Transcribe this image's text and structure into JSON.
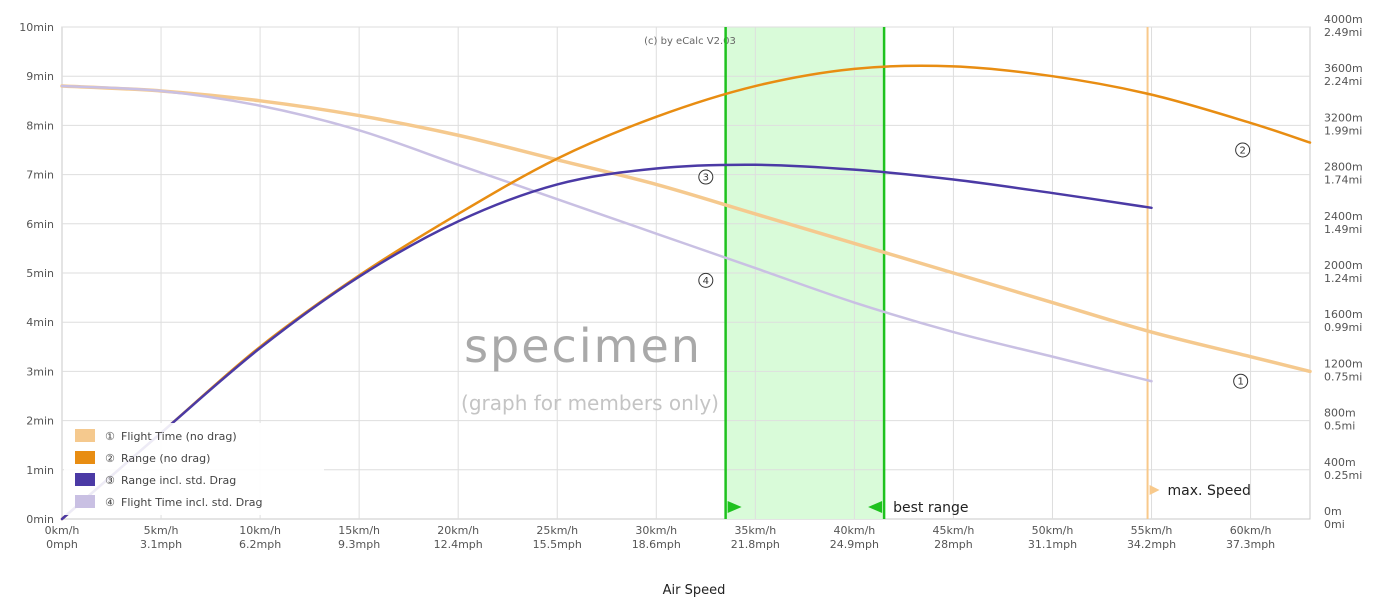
{
  "chart_data": {
    "type": "line",
    "xlabel": "Air Speed",
    "copyright": "(c) by eCalc  V2.03",
    "watermark": "specimen",
    "watermark_sub": "(graph for members only)",
    "x_range": [
      0,
      63
    ],
    "y_left_range": [
      0,
      10
    ],
    "y_right_range": [
      0,
      4000
    ],
    "x_ticks": [
      {
        "v": 0,
        "kmh": "0km/h",
        "mph": "0mph"
      },
      {
        "v": 5,
        "kmh": "5km/h",
        "mph": "3.1mph"
      },
      {
        "v": 10,
        "kmh": "10km/h",
        "mph": "6.2mph"
      },
      {
        "v": 15,
        "kmh": "15km/h",
        "mph": "9.3mph"
      },
      {
        "v": 20,
        "kmh": "20km/h",
        "mph": "12.4mph"
      },
      {
        "v": 25,
        "kmh": "25km/h",
        "mph": "15.5mph"
      },
      {
        "v": 30,
        "kmh": "30km/h",
        "mph": "18.6mph"
      },
      {
        "v": 35,
        "kmh": "35km/h",
        "mph": "21.8mph"
      },
      {
        "v": 40,
        "kmh": "40km/h",
        "mph": "24.9mph"
      },
      {
        "v": 45,
        "kmh": "45km/h",
        "mph": "28mph"
      },
      {
        "v": 50,
        "kmh": "50km/h",
        "mph": "31.1mph"
      },
      {
        "v": 55,
        "kmh": "55km/h",
        "mph": "34.2mph"
      },
      {
        "v": 60,
        "kmh": "60km/h",
        "mph": "37.3mph"
      }
    ],
    "y_left_ticks": [
      {
        "v": 0,
        "label": "0min"
      },
      {
        "v": 1,
        "label": "1min"
      },
      {
        "v": 2,
        "label": "2min"
      },
      {
        "v": 3,
        "label": "3min"
      },
      {
        "v": 4,
        "label": "4min"
      },
      {
        "v": 5,
        "label": "5min"
      },
      {
        "v": 6,
        "label": "6min"
      },
      {
        "v": 7,
        "label": "7min"
      },
      {
        "v": 8,
        "label": "8min"
      },
      {
        "v": 9,
        "label": "9min"
      },
      {
        "v": 10,
        "label": "10min"
      }
    ],
    "y_right_ticks": [
      {
        "v": 0,
        "m": "0m",
        "mi": "0mi"
      },
      {
        "v": 400,
        "m": "400m",
        "mi": "0.25mi"
      },
      {
        "v": 800,
        "m": "800m",
        "mi": "0.5mi"
      },
      {
        "v": 1200,
        "m": "1200m",
        "mi": "0.75mi"
      },
      {
        "v": 1600,
        "m": "1600m",
        "mi": "0.99mi"
      },
      {
        "v": 2000,
        "m": "2000m",
        "mi": "1.24mi"
      },
      {
        "v": 2400,
        "m": "2400m",
        "mi": "1.49mi"
      },
      {
        "v": 2800,
        "m": "2800m",
        "mi": "1.74mi"
      },
      {
        "v": 3200,
        "m": "3200m",
        "mi": "1.99mi"
      },
      {
        "v": 3600,
        "m": "3600m",
        "mi": "2.24mi"
      },
      {
        "v": 4000,
        "m": "4000m",
        "mi": "2.49mi"
      }
    ],
    "series": [
      {
        "id": 1,
        "axis": "left",
        "name": "Flight Time (no drag)",
        "color": "#f5c98e",
        "x": [
          0,
          5,
          10,
          15,
          20,
          25,
          30,
          35,
          40,
          45,
          50,
          55,
          60,
          63
        ],
        "y": [
          8.8,
          8.7,
          8.5,
          8.2,
          7.8,
          7.3,
          6.8,
          6.2,
          5.6,
          5.0,
          4.4,
          3.8,
          3.3,
          3.0
        ],
        "marker_x": 59.5,
        "marker_y": 2.8
      },
      {
        "id": 2,
        "axis": "right",
        "name": "Range (no drag)",
        "color": "#e88d12",
        "x": [
          0,
          5,
          10,
          15,
          20,
          25,
          30,
          35,
          40,
          45,
          50,
          55,
          60,
          63
        ],
        "y": [
          0,
          700,
          1400,
          1980,
          2480,
          2930,
          3270,
          3520,
          3660,
          3680,
          3600,
          3450,
          3220,
          3060
        ],
        "marker_x": 59.6,
        "marker_y": 3000
      },
      {
        "id": 3,
        "axis": "right",
        "name": "Range incl. std. Drag",
        "color": "#4b3aa5",
        "x": [
          0,
          5,
          10,
          15,
          20,
          25,
          30,
          35,
          40,
          45,
          50,
          55
        ],
        "y": [
          0,
          700,
          1390,
          1970,
          2420,
          2720,
          2850,
          2880,
          2840,
          2760,
          2650,
          2530
        ],
        "marker_x": 32.5,
        "marker_y": 2780
      },
      {
        "id": 4,
        "axis": "left",
        "name": "Flight Time incl. std. Drag",
        "color": "#c9c0e3",
        "x": [
          0,
          5,
          10,
          15,
          20,
          25,
          30,
          35,
          40,
          45,
          50,
          55
        ],
        "y": [
          8.8,
          8.7,
          8.4,
          7.9,
          7.2,
          6.5,
          5.8,
          5.1,
          4.4,
          3.8,
          3.3,
          2.8
        ],
        "marker_x": 32.5,
        "marker_y": 4.85
      }
    ],
    "legend": {
      "placement": "bottom-left",
      "items": [
        {
          "num": "①",
          "label": "Flight Time (no drag)",
          "color": "#f5c98e"
        },
        {
          "num": "②",
          "label": "Range (no drag)",
          "color": "#e88d12"
        },
        {
          "num": "③",
          "label": "Range incl. std. Drag",
          "color": "#4b3aa5"
        },
        {
          "num": "④",
          "label": "Flight Time incl. std. Drag",
          "color": "#c9c0e3"
        }
      ]
    },
    "best_range": {
      "x_start": 33.5,
      "x_end": 41.5,
      "label": "best range",
      "color": "#1ec21e",
      "fill": "#d9fbd9"
    },
    "max_speed": {
      "x": 54.8,
      "label": "max. Speed",
      "color": "#f8c98b"
    },
    "grid": true
  }
}
